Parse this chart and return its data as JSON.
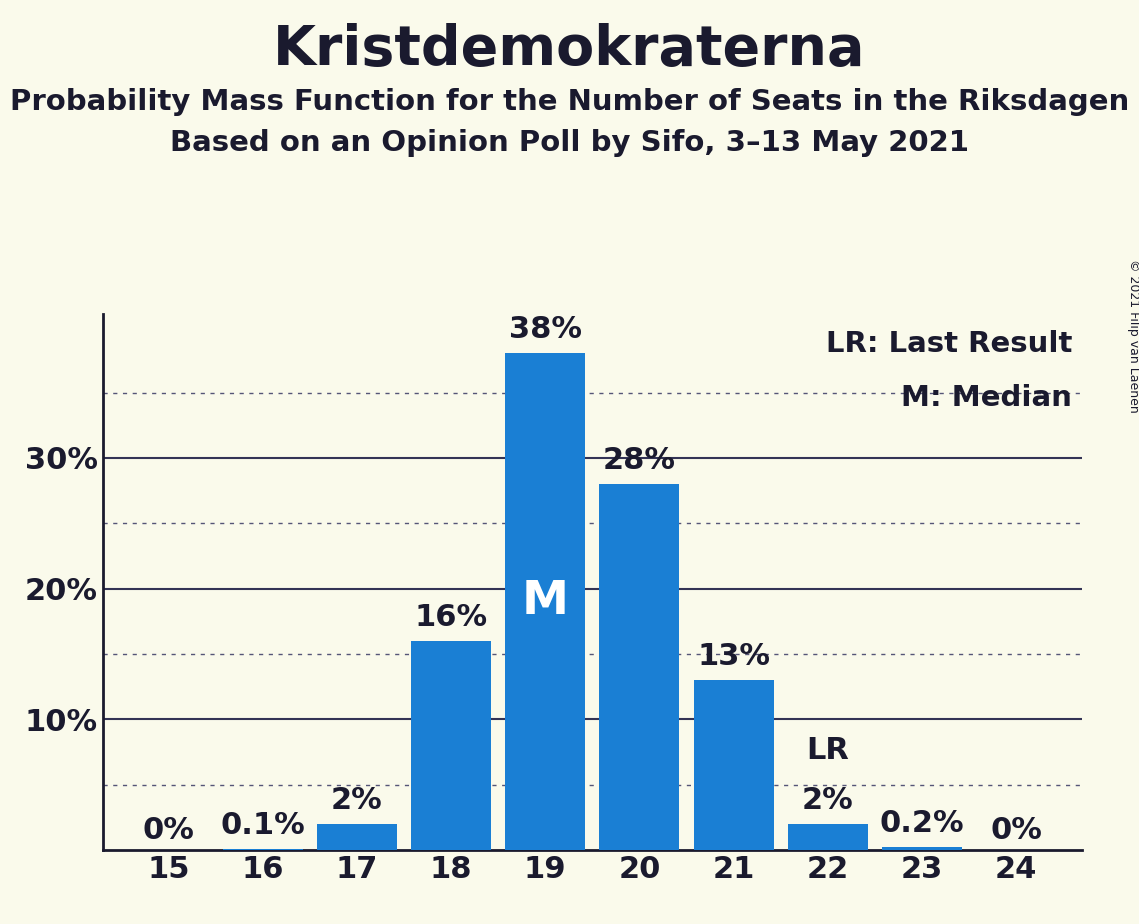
{
  "title": "Kristdemokraterna",
  "subtitle1": "Probability Mass Function for the Number of Seats in the Riksdagen",
  "subtitle2": "Based on an Opinion Poll by Sifo, 3–13 May 2021",
  "copyright": "© 2021 Filip van Laenen",
  "seats": [
    15,
    16,
    17,
    18,
    19,
    20,
    21,
    22,
    23,
    24
  ],
  "probabilities": [
    0.0,
    0.1,
    2.0,
    16.0,
    38.0,
    28.0,
    13.0,
    2.0,
    0.2,
    0.0
  ],
  "prob_labels": [
    "0%",
    "0.1%",
    "2%",
    "16%",
    "38%",
    "28%",
    "13%",
    "2%",
    "0.2%",
    "0%"
  ],
  "bar_color": "#1a7fd4",
  "median_seat": 19,
  "last_result_seat": 22,
  "background_color": "#fafaeb",
  "legend_lr": "LR: Last Result",
  "legend_m": "M: Median",
  "axis_color": "#1a1a2e",
  "grid_solid_color": "#333355",
  "grid_dot_color": "#555577",
  "bar_label_fontsize": 22,
  "title_fontsize": 40,
  "subtitle_fontsize": 21,
  "tick_fontsize": 22,
  "legend_fontsize": 21,
  "median_label_fontsize": 34,
  "copyright_fontsize": 9,
  "ylim_max": 41,
  "bar_width": 0.85
}
